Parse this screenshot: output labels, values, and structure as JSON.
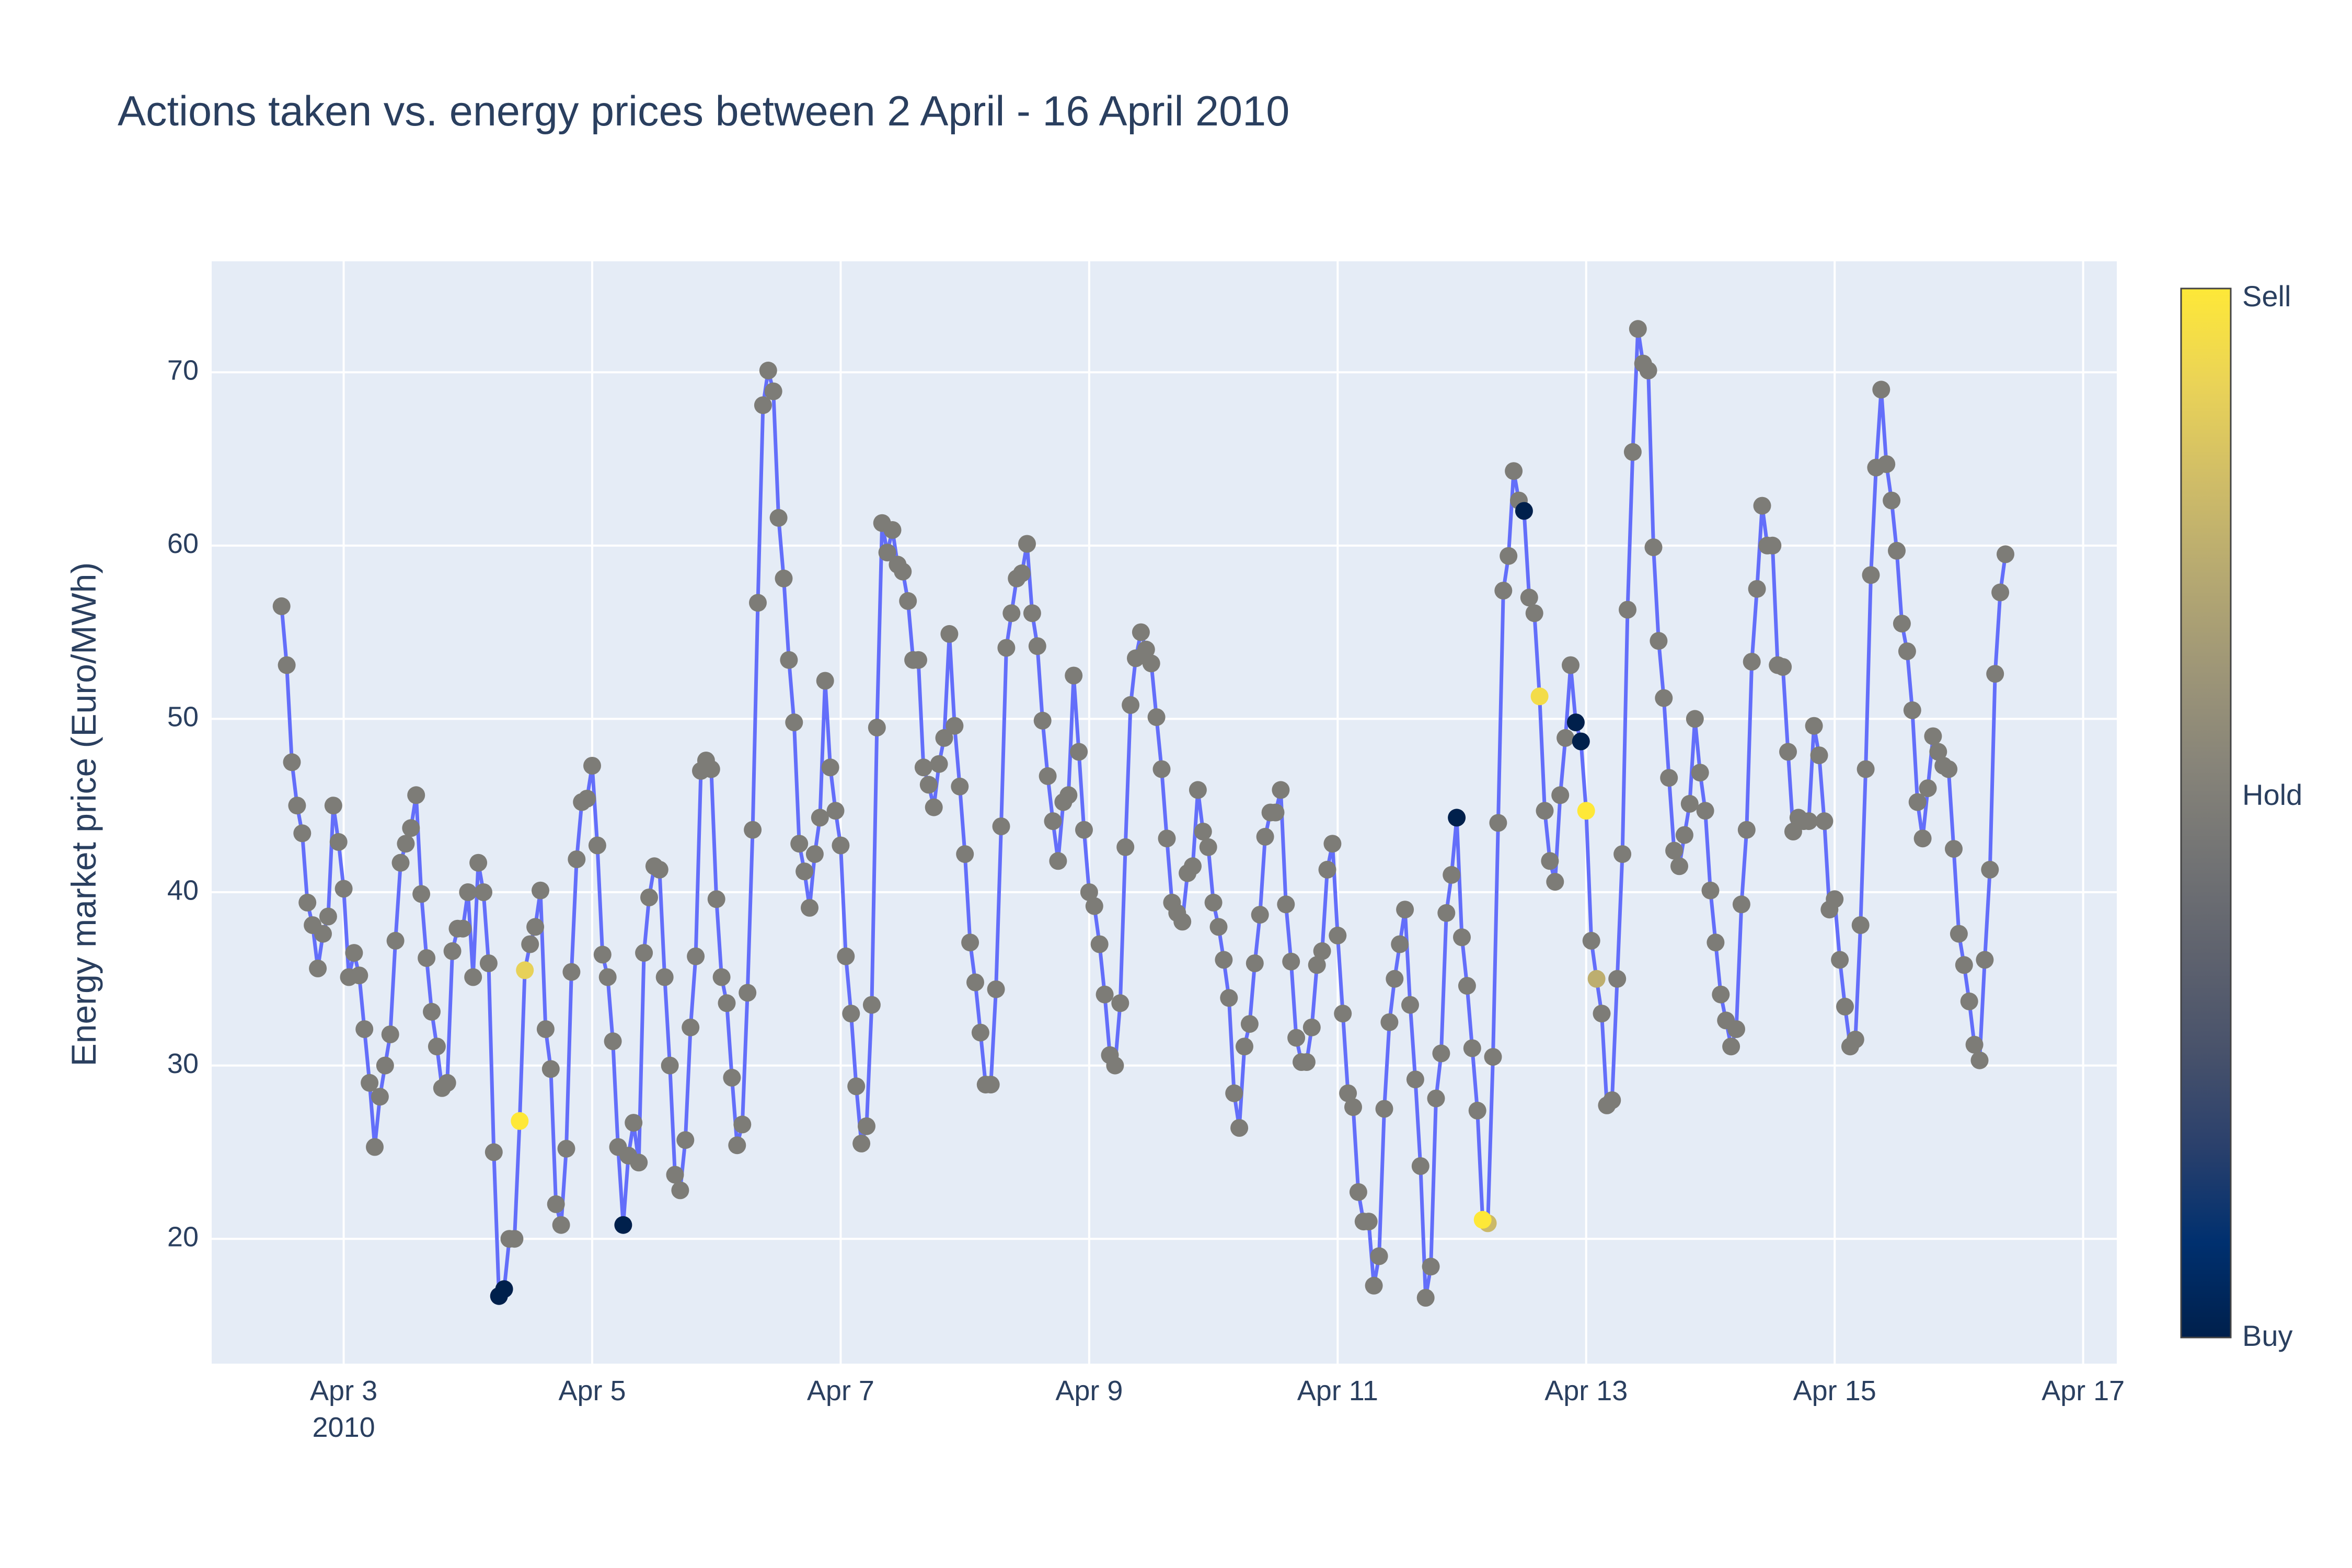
{
  "chart_data": {
    "type": "scatter",
    "mode": "lines+markers",
    "title": "Actions taken vs. energy prices between 2 April - 16 April 2010",
    "xlabel": "",
    "ylabel": "Energy market price (Euro/MWh)",
    "x_start": "2010-04-02 12:00",
    "x_step_hours": 1,
    "xlim": [
      "2010-04-01 22:30",
      "2010-04-17 06:30"
    ],
    "ylim": [
      12.8,
      76.4
    ],
    "x_ticks": [
      {
        "value": "2010-04-03",
        "label": "Apr 3",
        "sublabel": "2010"
      },
      {
        "value": "2010-04-05",
        "label": "Apr 5",
        "sublabel": ""
      },
      {
        "value": "2010-04-07",
        "label": "Apr 7",
        "sublabel": ""
      },
      {
        "value": "2010-04-09",
        "label": "Apr 9",
        "sublabel": ""
      },
      {
        "value": "2010-04-11",
        "label": "Apr 11",
        "sublabel": ""
      },
      {
        "value": "2010-04-13",
        "label": "Apr 13",
        "sublabel": ""
      },
      {
        "value": "2010-04-15",
        "label": "Apr 15",
        "sublabel": ""
      },
      {
        "value": "2010-04-17",
        "label": "Apr 17",
        "sublabel": ""
      }
    ],
    "y_ticks": [
      20,
      30,
      40,
      50,
      60,
      70
    ],
    "grid": true,
    "line_color": "#636efa",
    "plot_background": "#e5ecf6",
    "colorscale": [
      "#00204c",
      "#00306f",
      "#2a406c",
      "#48526b",
      "#5e626e",
      "#727374",
      "#878479",
      "#9e9677",
      "#b6a971",
      "#d0bd67",
      "#ead357",
      "#fee838"
    ],
    "colorbar": {
      "min_label": "Buy",
      "mid_label": "Hold",
      "max_label": "Sell",
      "range": [
        -1,
        1
      ]
    },
    "action_codes": {
      "buy": -1,
      "hold": 0,
      "sell": 1
    },
    "prices": [
      56.5,
      53.1,
      47.5,
      45,
      43.4,
      39.4,
      38.1,
      35.6,
      37.6,
      38.6,
      45,
      42.9,
      40.2,
      35.1,
      36.5,
      35.2,
      32.1,
      29,
      25.3,
      28.2,
      30,
      31.8,
      37.2,
      41.7,
      42.8,
      43.7,
      45.6,
      39.9,
      36.2,
      33.1,
      31.1,
      28.7,
      29,
      36.6,
      37.9,
      37.9,
      40,
      35.1,
      41.7,
      40,
      35.9,
      25,
      16.7,
      17.1,
      20,
      20,
      26.8,
      35.5,
      37,
      38,
      40.1,
      32.1,
      29.8,
      22,
      20.8,
      25.2,
      35.4,
      41.9,
      45.2,
      45.4,
      47.3,
      42.7,
      36.4,
      35.1,
      31.4,
      25.3,
      20.8,
      24.8,
      26.7,
      24.4,
      36.5,
      39.7,
      41.5,
      41.3,
      35.1,
      30,
      23.7,
      22.8,
      25.7,
      32.2,
      36.3,
      47,
      47.6,
      47.1,
      39.6,
      35.1,
      33.6,
      29.3,
      25.4,
      26.6,
      34.2,
      43.6,
      56.7,
      68.1,
      70.1,
      68.9,
      61.6,
      58.1,
      53.4,
      49.8,
      42.8,
      41.2,
      39.1,
      42.2,
      44.3,
      52.2,
      47.2,
      44.7,
      42.7,
      36.3,
      33,
      28.8,
      25.5,
      26.5,
      33.5,
      49.5,
      61.3,
      59.6,
      60.9,
      58.9,
      58.5,
      56.8,
      53.4,
      53.4,
      47.2,
      46.2,
      44.9,
      47.4,
      48.9,
      54.9,
      49.6,
      46.1,
      42.2,
      37.1,
      34.8,
      31.9,
      28.9,
      28.9,
      34.4,
      43.8,
      54.1,
      56.1,
      58.1,
      58.4,
      60.1,
      56.1,
      54.2,
      49.9,
      46.7,
      44.1,
      41.8,
      45.2,
      45.6,
      52.5,
      48.1,
      43.6,
      40,
      39.2,
      37,
      34.1,
      30.6,
      30,
      33.6,
      42.6,
      50.8,
      53.5,
      55,
      54,
      53.2,
      50.1,
      47.1,
      43.1,
      39.4,
      38.8,
      38.3,
      41.1,
      41.5,
      45.9,
      43.5,
      42.6,
      39.4,
      38,
      36.1,
      33.9,
      28.4,
      26.4,
      31.1,
      32.4,
      35.9,
      38.7,
      43.2,
      44.6,
      44.6,
      45.9,
      39.3,
      36,
      31.6,
      30.2,
      30.2,
      32.2,
      35.8,
      36.6,
      41.3,
      42.8,
      37.5,
      33,
      28.4,
      27.6,
      22.7,
      21,
      21,
      17.3,
      19,
      27.5,
      32.5,
      35,
      37,
      39,
      33.5,
      29.2,
      24.2,
      16.6,
      18.4,
      28.1,
      30.7,
      38.8,
      41,
      44.3,
      37.4,
      34.6,
      31,
      27.4,
      21.1,
      20.9,
      30.5,
      44,
      57.4,
      59.4,
      64.3,
      62.6,
      62,
      57,
      56.1,
      51.3,
      44.7,
      41.8,
      40.6,
      45.6,
      48.9,
      53.1,
      49.8,
      48.7,
      44.7,
      37.2,
      35,
      33,
      27.7,
      28,
      35,
      42.2,
      56.3,
      65.4,
      72.5,
      70.5,
      70.1,
      59.9,
      54.5,
      51.2,
      46.6,
      42.4,
      41.5,
      43.3,
      45.1,
      50,
      46.9,
      44.7,
      40.1,
      37.1,
      34.1,
      32.6,
      31.1,
      32.1,
      39.3,
      43.6,
      53.3,
      57.5,
      62.3,
      60,
      60,
      53.1,
      53,
      48.1,
      43.5,
      44.3,
      44.1,
      44.1,
      49.6,
      47.9,
      44.1,
      39,
      39.6,
      36.1,
      33.4,
      31.1,
      31.5,
      38.1,
      47.1,
      58.3,
      64.5,
      69,
      64.7,
      62.6,
      59.7,
      55.5,
      53.9,
      50.5,
      45.2,
      43.1,
      46,
      49,
      48.1,
      47.3,
      47.1,
      42.5,
      37.6,
      35.8,
      33.7,
      31.2,
      30.3,
      36.1,
      41.3,
      52.6,
      57.3,
      59.5
    ],
    "actions": [
      0,
      0,
      0,
      0,
      0,
      0,
      0,
      0,
      0,
      0,
      0,
      0,
      0,
      0,
      0,
      0,
      0,
      0,
      0,
      0,
      0,
      0,
      0,
      0,
      0,
      0,
      0,
      0,
      0,
      0,
      0,
      0,
      0,
      0,
      0,
      0,
      0,
      0,
      0,
      0,
      0,
      0,
      -1,
      -1,
      0,
      0,
      1,
      0.8,
      0,
      0,
      0,
      0,
      0,
      0,
      0,
      0,
      0,
      0,
      0,
      0,
      0,
      0,
      0,
      0,
      0,
      0,
      -1,
      0,
      0,
      0,
      0,
      0,
      0,
      0,
      0,
      0,
      0,
      0,
      0,
      0,
      0,
      0,
      0,
      0,
      0,
      0,
      0,
      0,
      0,
      0,
      0,
      0,
      0,
      0,
      0,
      0,
      0,
      0,
      0,
      0,
      0,
      0,
      0,
      0,
      0,
      0,
      0,
      0,
      0,
      0,
      0,
      0,
      0,
      0,
      0,
      0,
      0,
      0,
      0,
      0,
      0,
      0,
      0,
      0,
      0,
      0,
      0,
      0,
      0,
      0,
      0,
      0,
      0,
      0,
      0,
      0,
      0,
      0,
      0,
      0,
      0,
      0,
      0,
      0,
      0,
      0,
      0,
      0,
      0,
      0,
      0,
      0,
      0,
      0,
      0,
      0,
      0,
      0,
      0,
      0,
      0,
      0,
      0,
      0,
      0,
      0,
      0,
      0,
      0,
      0,
      0,
      0,
      0,
      0,
      0,
      0,
      0,
      0,
      0,
      0,
      0,
      0,
      0,
      0,
      0,
      0,
      0,
      0,
      0,
      0,
      0,
      0,
      0,
      0,
      0,
      0,
      0,
      0,
      0,
      0,
      0,
      0,
      0,
      0,
      0,
      0,
      0,
      0,
      0,
      0,
      0,
      0,
      0,
      0,
      0,
      0,
      0,
      0,
      0,
      0,
      0,
      0,
      0,
      0,
      0,
      0,
      0,
      -1,
      0,
      0,
      0,
      0,
      1,
      0.6,
      0,
      0,
      0,
      0,
      0,
      0,
      -1,
      0,
      0,
      0.9,
      0,
      0,
      0,
      0,
      0,
      0,
      -1,
      -1,
      1,
      0,
      0.5,
      0,
      0,
      0,
      0,
      0,
      0,
      0,
      0,
      0,
      0,
      0,
      0,
      0,
      0,
      0,
      0,
      0,
      0,
      0,
      0,
      0,
      0,
      0,
      0,
      0,
      0,
      0,
      0,
      0,
      0,
      0,
      0,
      0,
      0,
      0,
      0,
      0,
      0,
      0,
      0,
      0,
      0,
      0,
      0,
      0,
      0,
      0,
      0,
      0,
      0,
      0,
      0,
      0,
      0,
      0,
      0,
      0,
      0,
      0,
      0,
      0,
      0,
      0,
      0,
      0,
      0,
      0,
      0,
      0,
      0,
      0,
      0,
      0,
      0,
      0,
      0,
      0,
      0,
      0,
      0,
      0,
      0,
      0,
      0,
      0,
      0,
      0,
      0,
      0,
      0,
      0,
      0,
      0,
      0,
      0,
      0,
      0,
      0,
      0,
      0,
      0,
      0,
      0,
      0,
      0,
      0,
      0,
      0,
      0,
      0,
      0,
      0,
      0
    ]
  }
}
